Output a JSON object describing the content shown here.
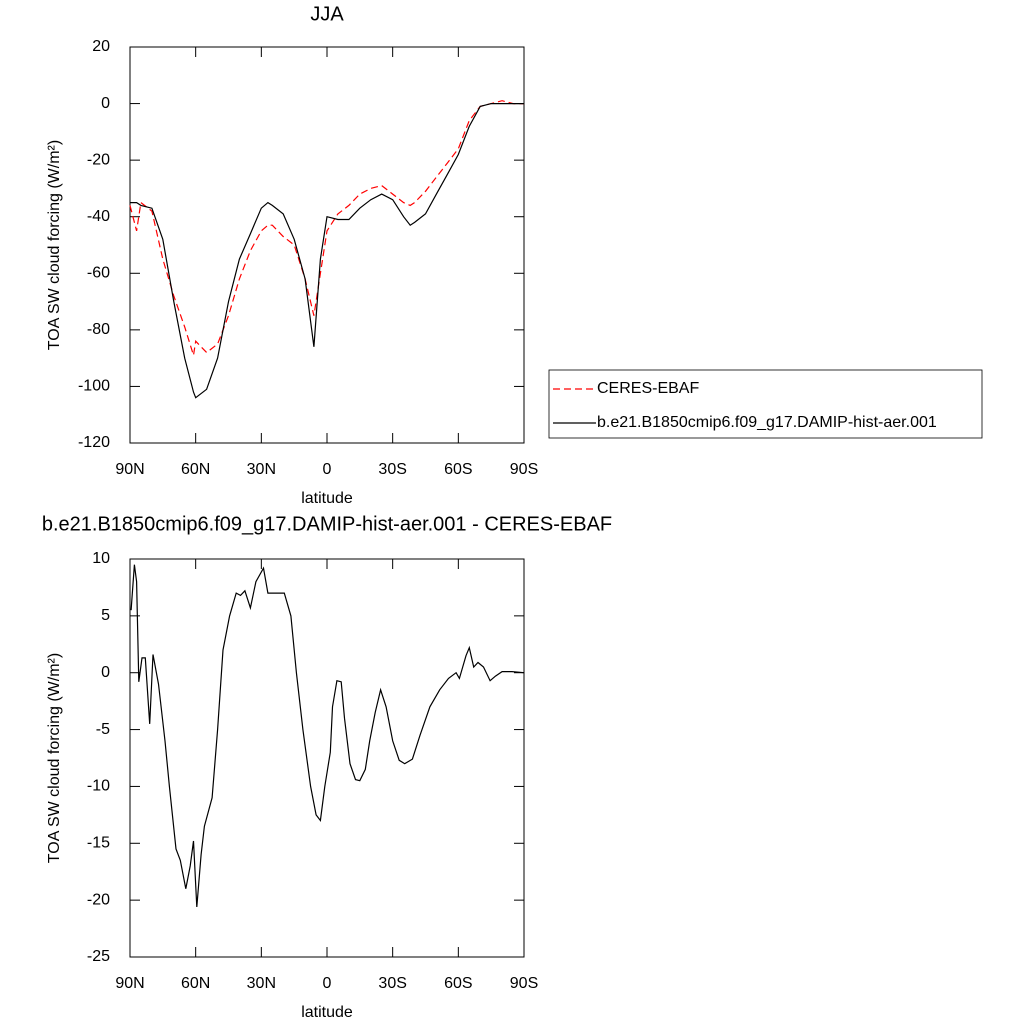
{
  "chart_data": [
    {
      "type": "line",
      "title": "JJA",
      "xlabel": "latitude",
      "ylabel": "TOA SW cloud forcing (W/m²)",
      "x": [
        90,
        87,
        85,
        80,
        75,
        70,
        65,
        61,
        60,
        55,
        50,
        45,
        40,
        35,
        30,
        27,
        25,
        20,
        15,
        10,
        6,
        3,
        0,
        -5,
        -10,
        -15,
        -20,
        -25,
        -30,
        -35,
        -38,
        -40,
        -45,
        -50,
        -55,
        -60,
        -65,
        -70,
        -75,
        -80,
        -85,
        -90
      ],
      "series": [
        {
          "name": "CERES-EBAF",
          "color": "#ff0000",
          "line_style": "dashed",
          "values": [
            -36,
            -45,
            -35,
            -38,
            -55,
            -68,
            -79,
            -89,
            -84,
            -88,
            -85,
            -75,
            -62,
            -52,
            -45,
            -43,
            -43,
            -47,
            -50,
            -62,
            -75,
            -60,
            -45,
            -39,
            -36,
            -32,
            -30,
            -29,
            -32,
            -35,
            -36,
            -35,
            -31,
            -26,
            -21,
            -16,
            -6,
            -1,
            0,
            1,
            0,
            0
          ]
        },
        {
          "name": "b.e21.B1850cmip6.f09_g17.DAMIP-hist-aer.001",
          "color": "#000000",
          "line_style": "solid",
          "values": [
            -35,
            -35,
            -36,
            -37,
            -48,
            -70,
            -90,
            -102,
            -104,
            -101,
            -90,
            -70,
            -55,
            -46,
            -37,
            -35,
            -36,
            -39,
            -48,
            -62,
            -86,
            -55,
            -40,
            -41,
            -41,
            -37,
            -34,
            -32,
            -34,
            -40,
            -43,
            -42,
            -39,
            -32,
            -25,
            -18,
            -8,
            -1,
            0,
            0,
            0,
            0
          ]
        }
      ],
      "xlim": [
        90,
        -90
      ],
      "xticks": [
        {
          "value": 90,
          "label": "90N"
        },
        {
          "value": 60,
          "label": "60N"
        },
        {
          "value": 30,
          "label": "30N"
        },
        0,
        {
          "value": -30,
          "label": "30S"
        },
        {
          "value": -60,
          "label": "60S"
        },
        {
          "value": -90,
          "label": "90S"
        }
      ],
      "ylim": [
        -120,
        20
      ],
      "yticks": [
        20,
        0,
        -20,
        -40,
        -60,
        -80,
        -100,
        -120
      ],
      "legend": "right"
    },
    {
      "type": "line",
      "title": "b.e21.B1850cmip6.f09_g17.DAMIP-hist-aer.001 - CERES-EBAF",
      "xlabel": "latitude",
      "ylabel": "TOA SW cloud forcing (W/m²)",
      "x": [
        89.5,
        88,
        87,
        86,
        84.5,
        83,
        81,
        79.5,
        77,
        74,
        72,
        69,
        67,
        64.5,
        62.5,
        61,
        59.5,
        57.5,
        56,
        52.5,
        50,
        47.5,
        44.5,
        41.5,
        39.5,
        37.5,
        35,
        32.5,
        29,
        27,
        24.5,
        21.5,
        19.5,
        16.5,
        14,
        11,
        7.5,
        5,
        3,
        1,
        -1.5,
        -2.5,
        -4.5,
        -6.5,
        -8,
        -10.5,
        -13,
        -15,
        -17.5,
        -19.5,
        -22,
        -24.5,
        -27,
        -30,
        -33,
        -35.5,
        -39,
        -42.5,
        -47,
        -51.5,
        -55.5,
        -59,
        -60.5,
        -63.5,
        -65,
        -67,
        -69,
        -71.5,
        -74.5,
        -77,
        -80,
        -84.5,
        -90
      ],
      "values": [
        5.5,
        9.5,
        8,
        -0.8,
        1.3,
        1.3,
        -4.5,
        1.6,
        -1,
        -6,
        -10,
        -15.5,
        -16.5,
        -19,
        -17,
        -14.8,
        -20.6,
        -16,
        -13.5,
        -11,
        -5,
        2,
        5,
        7,
        6.8,
        7.2,
        5.7,
        8,
        9.2,
        7,
        7,
        7,
        7,
        5,
        0,
        -5,
        -10,
        -12.5,
        -13,
        -10,
        -7,
        -3,
        -0.7,
        -0.8,
        -4,
        -8,
        -9.4,
        -9.5,
        -8.5,
        -6,
        -3.5,
        -1.5,
        -3,
        -6,
        -7.7,
        -8,
        -7.6,
        -5.5,
        -3,
        -1.5,
        -0.5,
        0,
        -0.5,
        1.5,
        2.2,
        0.5,
        0.9,
        0.5,
        -0.7,
        -0.3,
        0.1,
        0.1,
        0
      ],
      "color": "#000000",
      "xlim": [
        90,
        -90
      ],
      "xticks": [
        {
          "value": 90,
          "label": "90N"
        },
        {
          "value": 60,
          "label": "60N"
        },
        {
          "value": 30,
          "label": "30N"
        },
        0,
        {
          "value": -30,
          "label": "30S"
        },
        {
          "value": -60,
          "label": "60S"
        },
        {
          "value": -90,
          "label": "90S"
        }
      ],
      "ylim": [
        -25,
        10
      ],
      "yticks": [
        10,
        5,
        0,
        -5,
        -10,
        -15,
        -20,
        -25
      ]
    }
  ]
}
